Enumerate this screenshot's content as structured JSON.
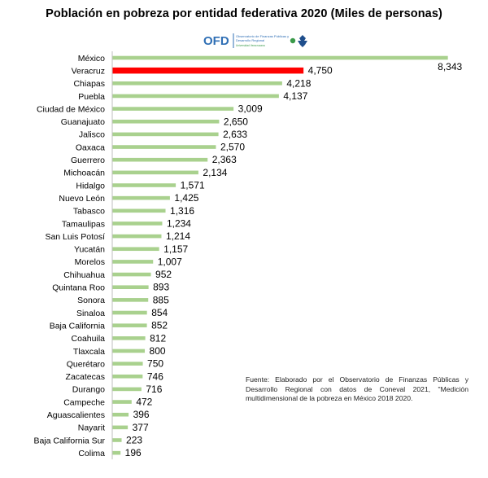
{
  "title": "Población  en pobreza por entidad federativa 2020 (Miles de personas)",
  "logo": {
    "acronym": "OFD",
    "line1": "Observatorio de Finanzas Públicas y",
    "line2": "Desarrollo Regional",
    "line3": "Universidad Veracruzana"
  },
  "source_note": "Fuente: Elaborado por el Observatorio de Finanzas Públicas y Desarrollo Regional con datos de Coneval 2021, \"Medición multidimensional de la pobreza en México 2018  2020.",
  "colors": {
    "bar": "#a9d18e",
    "highlight": "#ff0000",
    "axis": "#bfbfbf"
  },
  "chart_data": {
    "type": "bar",
    "orientation": "horizontal",
    "title": "Población  en pobreza por entidad federativa 2020 (Miles de personas)",
    "xlim": [
      0,
      8400
    ],
    "grid": false,
    "highlight_category": "Veracruz",
    "categories": [
      "México",
      "Veracruz",
      "Chiapas",
      "Puebla",
      "Ciudad de México",
      "Guanajuato",
      "Jalisco",
      "Oaxaca",
      "Guerrero",
      "Michoacán",
      "Hidalgo",
      "Nuevo León",
      "Tabasco",
      "Tamaulipas",
      "San Luis Potosí",
      "Yucatán",
      "Morelos",
      "Chihuahua",
      "Quintana Roo",
      "Sonora",
      "Sinaloa",
      "Baja California",
      "Coahuila",
      "Tlaxcala",
      "Querétaro",
      "Zacatecas",
      "Durango",
      "Campeche",
      "Aguascalientes",
      "Nayarit",
      "Baja California Sur",
      "Colima"
    ],
    "values": [
      8343,
      4750,
      4218,
      4137,
      3009,
      2650,
      2633,
      2570,
      2363,
      2134,
      1571,
      1425,
      1316,
      1234,
      1214,
      1157,
      1007,
      952,
      893,
      885,
      854,
      852,
      812,
      800,
      750,
      746,
      716,
      472,
      396,
      377,
      223,
      196
    ],
    "value_labels": [
      "8,343",
      "4,750",
      "4,218",
      "4,137",
      "3,009",
      "2,650",
      "2,633",
      "2,570",
      "2,363",
      "2,134",
      "1,571",
      "1,425",
      "1,316",
      "1,234",
      "1,214",
      "1,157",
      "1,007",
      "952",
      "893",
      "885",
      "854",
      "852",
      "812",
      "800",
      "750",
      "746",
      "716",
      "472",
      "396",
      "377",
      "223",
      "196"
    ]
  }
}
